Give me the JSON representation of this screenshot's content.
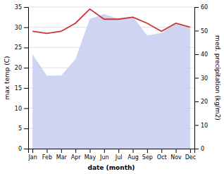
{
  "chart_data": {
    "type": "line",
    "categories": [
      "Jan",
      "Feb",
      "Mar",
      "Apr",
      "May",
      "Jun",
      "Jul",
      "Aug",
      "Sep",
      "Oct",
      "Nov",
      "Dec"
    ],
    "xlabel": "date (month)",
    "ylabel": "max temp (C)",
    "y2label": "med. precipitation (kg/m2)",
    "ylim": [
      0,
      35
    ],
    "yticks": [
      0,
      5,
      10,
      15,
      20,
      25,
      30,
      35
    ],
    "y2lim": [
      0,
      60
    ],
    "y2ticks": [
      0,
      10,
      20,
      30,
      40,
      50,
      60
    ],
    "grid": true,
    "series": [
      {
        "type": "area",
        "axis": "y2",
        "color": "#c5cdf0",
        "values": [
          40,
          31,
          31,
          38,
          55,
          57,
          55,
          56,
          48,
          49,
          53,
          51
        ]
      },
      {
        "type": "line",
        "color": "#cc3333",
        "values": [
          29.0,
          28.5,
          29.0,
          31.0,
          34.5,
          32.0,
          32.0,
          32.5,
          31.0,
          29.0,
          31.0,
          30.0
        ]
      }
    ]
  }
}
